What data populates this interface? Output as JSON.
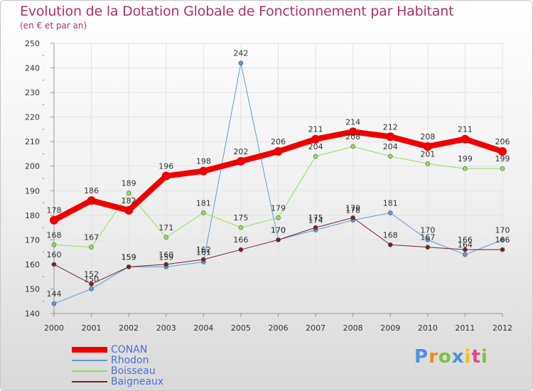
{
  "colors": {
    "title": "#b0306a",
    "axis": "#999999",
    "grid": "#e3e3e3",
    "legend_text": "#4a6fd8"
  },
  "chart_data": {
    "type": "line",
    "title": "Evolution de la Dotation Globale de Fonctionnement par Habitant",
    "subtitle": "(en € et par an)",
    "xlabel": "",
    "ylabel": "",
    "ylim": [
      140,
      250
    ],
    "yticks": [
      "140",
      "150",
      "160",
      "170",
      "180",
      "190",
      "200",
      "210",
      "220",
      "230",
      "240",
      "250"
    ],
    "categories": [
      "2000",
      "2001",
      "2002",
      "2003",
      "2004",
      "2005",
      "2006",
      "2007",
      "2008",
      "2009",
      "2010",
      "2011",
      "2012"
    ],
    "grid": true,
    "legend_position": "bottom-left",
    "series": [
      {
        "name": "CONAN",
        "color": "#ee0000",
        "width": 8,
        "values": [
          178,
          186,
          182,
          196,
          198,
          202,
          206,
          211,
          214,
          212,
          208,
          211,
          206
        ]
      },
      {
        "name": "Rhodon",
        "color": "#5b9bd5",
        "width": 1,
        "values": [
          144,
          150,
          159,
          159,
          161,
          242,
          170,
          174,
          178,
          181,
          170,
          164,
          170
        ]
      },
      {
        "name": "Boisseau",
        "color": "#8ee25a",
        "width": 1,
        "values": [
          168,
          167,
          189,
          171,
          181,
          175,
          179,
          204,
          208,
          204,
          201,
          199,
          199
        ]
      },
      {
        "name": "Baigneaux",
        "color": "#7a1e30",
        "width": 1,
        "values": [
          160,
          152,
          159,
          160,
          162,
          166,
          170,
          175,
          179,
          168,
          167,
          166,
          166
        ]
      }
    ]
  },
  "brand": {
    "letters": [
      "P",
      "r",
      "o",
      "x",
      "i",
      "t",
      "i"
    ],
    "colors": [
      "#4a90e2",
      "#f08a1c",
      "#7cc242",
      "#4a90e2",
      "#f2c21b",
      "#e04b8a",
      "#7cc242"
    ]
  }
}
